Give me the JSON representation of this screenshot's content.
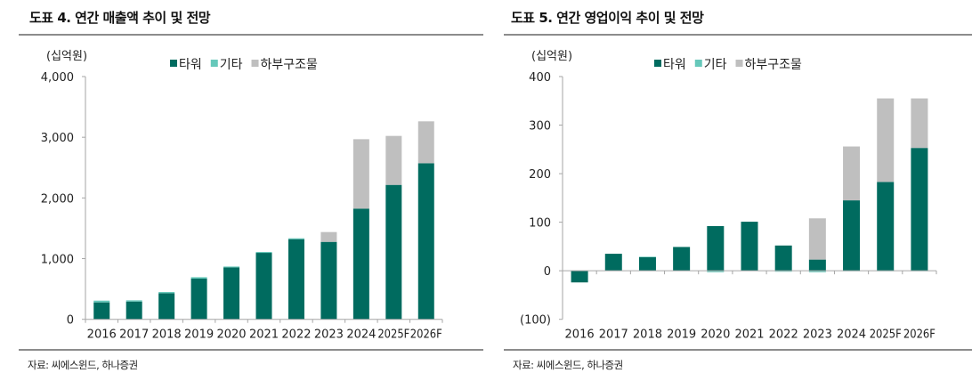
{
  "panels": [
    {
      "title": "도표 4. 연간 매출액 추이 및 전망",
      "source": "자료: 씨에스윈드, 하나증권"
    },
    {
      "title": "도표 5. 연간 영업이익 추이 및 전망",
      "source": "자료: 씨에스윈드, 하나증권"
    }
  ],
  "chart_data": [
    {
      "type": "bar",
      "stacked": true,
      "title": "도표 4. 연간 매출액 추이 및 전망",
      "unit": "(십억원)",
      "categories": [
        "2016",
        "2017",
        "2018",
        "2019",
        "2020",
        "2021",
        "2022",
        "2023",
        "2024",
        "2025F",
        "2026F"
      ],
      "series": [
        {
          "name": "타워",
          "color": "#006B5F",
          "values": [
            279,
            293,
            430,
            670,
            856,
            1095,
            1320,
            1276,
            1824,
            2215,
            2572
          ]
        },
        {
          "name": "기타",
          "color": "#66C8BA",
          "values": [
            29,
            20,
            20,
            24,
            14,
            15,
            15,
            0,
            0,
            0,
            0
          ]
        },
        {
          "name": "하부구조물",
          "color": "#BFBFBF",
          "values": [
            0,
            0,
            0,
            0,
            0,
            0,
            0,
            162,
            1144,
            807,
            690
          ]
        }
      ],
      "ylim": [
        0,
        4000
      ],
      "yticks": [
        0,
        1000,
        2000,
        3000,
        4000
      ],
      "ytick_labels": [
        "0",
        "1,000",
        "2,000",
        "3,000",
        "4,000"
      ],
      "grid": false,
      "legend": "top"
    },
    {
      "type": "bar",
      "stacked": true,
      "title": "도표 5. 연간 영업이익 추이 및 전망",
      "unit": "(십억원)",
      "categories": [
        "2016",
        "2017",
        "2018",
        "2019",
        "2020",
        "2021",
        "2022",
        "2023",
        "2024",
        "2025F",
        "2026F"
      ],
      "series": [
        {
          "name": "타워",
          "color": "#006B5F",
          "values": [
            -24,
            35,
            28,
            49,
            92,
            101,
            52,
            23,
            145,
            183,
            253
          ]
        },
        {
          "name": "기타",
          "color": "#66C8BA",
          "values": [
            0,
            0,
            1,
            0,
            -3,
            0,
            -2,
            -3,
            -1,
            -1,
            -1
          ]
        },
        {
          "name": "하부구조물",
          "color": "#BFBFBF",
          "values": [
            0,
            0,
            0,
            0,
            0,
            0,
            0,
            85,
            111,
            172,
            102
          ]
        }
      ],
      "ylim": [
        -100,
        400
      ],
      "yticks": [
        -100,
        0,
        100,
        200,
        300,
        400
      ],
      "ytick_labels": [
        "(100)",
        "0",
        "100",
        "200",
        "300",
        "400"
      ],
      "grid": false,
      "legend": "top"
    }
  ]
}
